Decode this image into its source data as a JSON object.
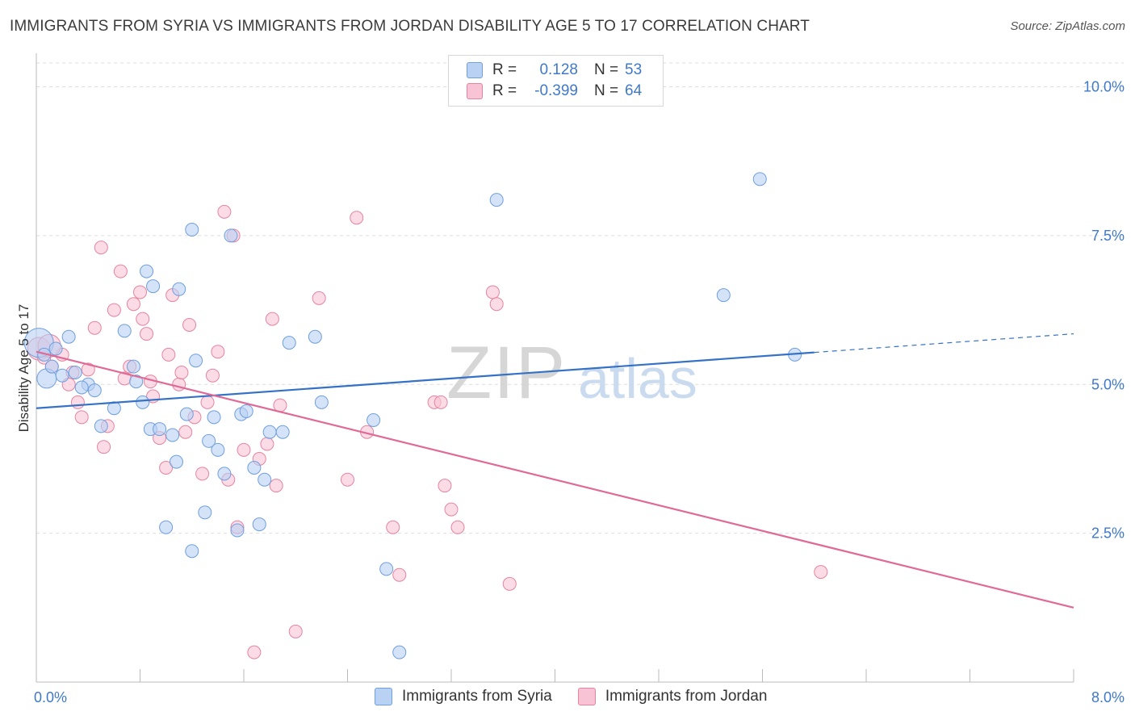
{
  "header": {
    "title": "IMMIGRANTS FROM SYRIA VS IMMIGRANTS FROM JORDAN DISABILITY AGE 5 TO 17 CORRELATION CHART",
    "source": "Source: ZipAtlas.com"
  },
  "legend_top": {
    "rows": [
      {
        "r_label": "R =",
        "r_value": "0.128",
        "n_label": "N =",
        "n_value": "53"
      },
      {
        "r_label": "R =",
        "r_value": "-0.399",
        "n_label": "N =",
        "n_value": "64"
      }
    ]
  },
  "watermark": {
    "zip": "ZIP",
    "atlas": "atlas"
  },
  "colors": {
    "syria_fill": "#b9d1f3",
    "syria_stroke": "#6f9fde",
    "syria_line": "#3572c6",
    "jordan_fill": "#f8c4d5",
    "jordan_stroke": "#e6849f",
    "jordan_line": "#e06a95",
    "tick_label": "#3f79c9",
    "grid": "#dddddd"
  },
  "chart_data": {
    "type": "scatter",
    "title": "IMMIGRANTS FROM SYRIA VS IMMIGRANTS FROM JORDAN DISABILITY AGE 5 TO 17 CORRELATION CHART",
    "xlabel": "",
    "ylabel": "Disability Age 5 to 17",
    "xlim": [
      0,
      8
    ],
    "ylim": [
      0,
      10.4
    ],
    "x_tick_labels": [
      {
        "value": 0,
        "label": "0.0%"
      },
      {
        "value": 8,
        "label": "8.0%"
      }
    ],
    "y_ticks": [
      {
        "value": 2.5,
        "label": "2.5%"
      },
      {
        "value": 5.0,
        "label": "5.0%"
      },
      {
        "value": 7.5,
        "label": "7.5%"
      },
      {
        "value": 10.0,
        "label": "10.0%"
      }
    ],
    "x_minor_ticks": [
      0.8,
      1.6,
      2.4,
      3.2,
      4.0,
      4.8,
      5.6,
      6.4,
      7.2
    ],
    "grid": true,
    "series": [
      {
        "name": "Immigrants from Syria",
        "points": [
          [
            0.02,
            5.7
          ],
          [
            0.08,
            5.1
          ],
          [
            0.15,
            5.6
          ],
          [
            0.25,
            5.8
          ],
          [
            0.12,
            5.3
          ],
          [
            0.3,
            5.2
          ],
          [
            0.4,
            5.0
          ],
          [
            0.45,
            4.9
          ],
          [
            0.35,
            4.95
          ],
          [
            0.6,
            4.6
          ],
          [
            0.5,
            4.3
          ],
          [
            0.75,
            5.3
          ],
          [
            0.68,
            5.9
          ],
          [
            0.77,
            5.05
          ],
          [
            0.82,
            4.7
          ],
          [
            0.85,
            6.9
          ],
          [
            0.88,
            4.25
          ],
          [
            0.9,
            6.65
          ],
          [
            0.95,
            4.25
          ],
          [
            1.0,
            2.6
          ],
          [
            1.05,
            4.15
          ],
          [
            1.08,
            3.7
          ],
          [
            1.1,
            6.6
          ],
          [
            1.16,
            4.5
          ],
          [
            1.2,
            2.2
          ],
          [
            1.2,
            7.6
          ],
          [
            1.23,
            5.4
          ],
          [
            1.3,
            2.85
          ],
          [
            1.33,
            4.05
          ],
          [
            1.37,
            4.45
          ],
          [
            1.4,
            3.9
          ],
          [
            1.45,
            3.5
          ],
          [
            1.5,
            7.5
          ],
          [
            1.55,
            2.55
          ],
          [
            1.58,
            4.5
          ],
          [
            1.62,
            4.55
          ],
          [
            1.68,
            3.6
          ],
          [
            1.72,
            2.65
          ],
          [
            1.76,
            3.4
          ],
          [
            1.8,
            4.2
          ],
          [
            1.9,
            4.2
          ],
          [
            1.95,
            5.7
          ],
          [
            2.15,
            5.8
          ],
          [
            2.2,
            4.7
          ],
          [
            2.6,
            4.4
          ],
          [
            2.7,
            1.9
          ],
          [
            2.8,
            0.5
          ],
          [
            3.55,
            8.1
          ],
          [
            5.3,
            6.5
          ],
          [
            5.58,
            8.45
          ],
          [
            5.85,
            5.5
          ],
          [
            0.06,
            5.5
          ],
          [
            0.2,
            5.15
          ]
        ],
        "trend": {
          "x_start": 0,
          "y_start": 4.6,
          "x_solid_end": 6.0,
          "x_end": 8.0,
          "y_end": 5.85
        }
      },
      {
        "name": "Immigrants from Jordan",
        "points": [
          [
            0.02,
            5.6
          ],
          [
            0.06,
            5.45
          ],
          [
            0.12,
            5.3
          ],
          [
            0.2,
            5.5
          ],
          [
            0.28,
            5.2
          ],
          [
            0.32,
            4.7
          ],
          [
            0.35,
            4.45
          ],
          [
            0.4,
            5.25
          ],
          [
            0.45,
            5.95
          ],
          [
            0.5,
            7.3
          ],
          [
            0.52,
            3.95
          ],
          [
            0.55,
            4.3
          ],
          [
            0.6,
            6.25
          ],
          [
            0.65,
            6.9
          ],
          [
            0.68,
            5.1
          ],
          [
            0.72,
            5.3
          ],
          [
            0.75,
            6.35
          ],
          [
            0.8,
            6.55
          ],
          [
            0.82,
            6.1
          ],
          [
            0.85,
            5.85
          ],
          [
            0.88,
            5.05
          ],
          [
            0.9,
            4.8
          ],
          [
            0.95,
            4.1
          ],
          [
            1.0,
            3.6
          ],
          [
            1.02,
            5.5
          ],
          [
            1.05,
            6.5
          ],
          [
            1.1,
            5.0
          ],
          [
            1.12,
            5.2
          ],
          [
            1.15,
            4.2
          ],
          [
            1.18,
            6.0
          ],
          [
            1.22,
            4.45
          ],
          [
            1.28,
            3.5
          ],
          [
            1.32,
            4.7
          ],
          [
            1.36,
            5.15
          ],
          [
            1.4,
            5.55
          ],
          [
            1.45,
            7.9
          ],
          [
            1.48,
            3.4
          ],
          [
            1.52,
            7.5
          ],
          [
            1.55,
            2.6
          ],
          [
            1.6,
            3.9
          ],
          [
            1.68,
            0.5
          ],
          [
            1.72,
            3.75
          ],
          [
            1.78,
            4.0
          ],
          [
            1.82,
            6.1
          ],
          [
            1.85,
            3.3
          ],
          [
            1.88,
            4.65
          ],
          [
            2.0,
            0.85
          ],
          [
            2.18,
            6.45
          ],
          [
            2.4,
            3.4
          ],
          [
            2.55,
            4.2
          ],
          [
            2.47,
            7.8
          ],
          [
            2.75,
            2.6
          ],
          [
            2.8,
            1.8
          ],
          [
            3.07,
            4.7
          ],
          [
            3.12,
            4.7
          ],
          [
            3.15,
            3.3
          ],
          [
            3.2,
            2.9
          ],
          [
            3.25,
            2.6
          ],
          [
            3.52,
            6.55
          ],
          [
            3.55,
            6.35
          ],
          [
            3.65,
            1.65
          ],
          [
            6.05,
            1.85
          ],
          [
            0.1,
            5.65
          ],
          [
            0.25,
            5.0
          ]
        ],
        "trend": {
          "x_start": 0,
          "y_start": 5.55,
          "x_end": 8.0,
          "y_end": 1.25
        }
      }
    ]
  },
  "legend_bottom": {
    "items": [
      {
        "label": "Immigrants from Syria"
      },
      {
        "label": "Immigrants from Jordan"
      }
    ]
  }
}
